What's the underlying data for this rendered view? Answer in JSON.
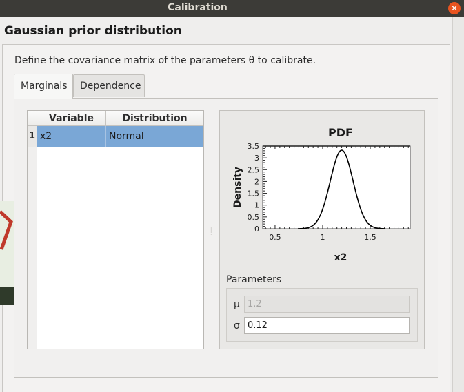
{
  "window": {
    "title": "Calibration",
    "close_symbol": "×"
  },
  "page": {
    "title": "Gaussian prior distribution",
    "description": "Define the covariance matrix of the parameters θ to calibrate."
  },
  "tabs": [
    {
      "label": "Marginals",
      "active": true
    },
    {
      "label": "Dependence",
      "active": false
    }
  ],
  "table": {
    "columns": [
      "Variable",
      "Distribution"
    ],
    "rows": [
      {
        "index": "1",
        "variable": "x2",
        "distribution": "Normal",
        "selected": true
      }
    ]
  },
  "plot": {
    "title": "PDF",
    "ylabel": "Density",
    "xlabel": "x2",
    "yticks": [
      "0",
      "0.5",
      "1",
      "1.5",
      "2",
      "2.5",
      "3",
      "3.5"
    ],
    "xticks": [
      "0.5",
      "1",
      "1.5"
    ]
  },
  "chart_data": {
    "type": "line",
    "title": "PDF",
    "xlabel": "x2",
    "ylabel": "Density",
    "distribution": "Normal",
    "mu": 1.2,
    "sigma": 0.12,
    "xlim": [
      0.37,
      1.92
    ],
    "ylim": [
      0,
      3.5
    ],
    "curve_range": [
      0.74,
      1.66
    ],
    "peak_density": 3.32
  },
  "parameters": {
    "label": "Parameters",
    "mu": {
      "symbol": "μ",
      "value": "1.2",
      "enabled": false
    },
    "sigma": {
      "symbol": "σ",
      "value": "0.12",
      "enabled": true
    }
  }
}
